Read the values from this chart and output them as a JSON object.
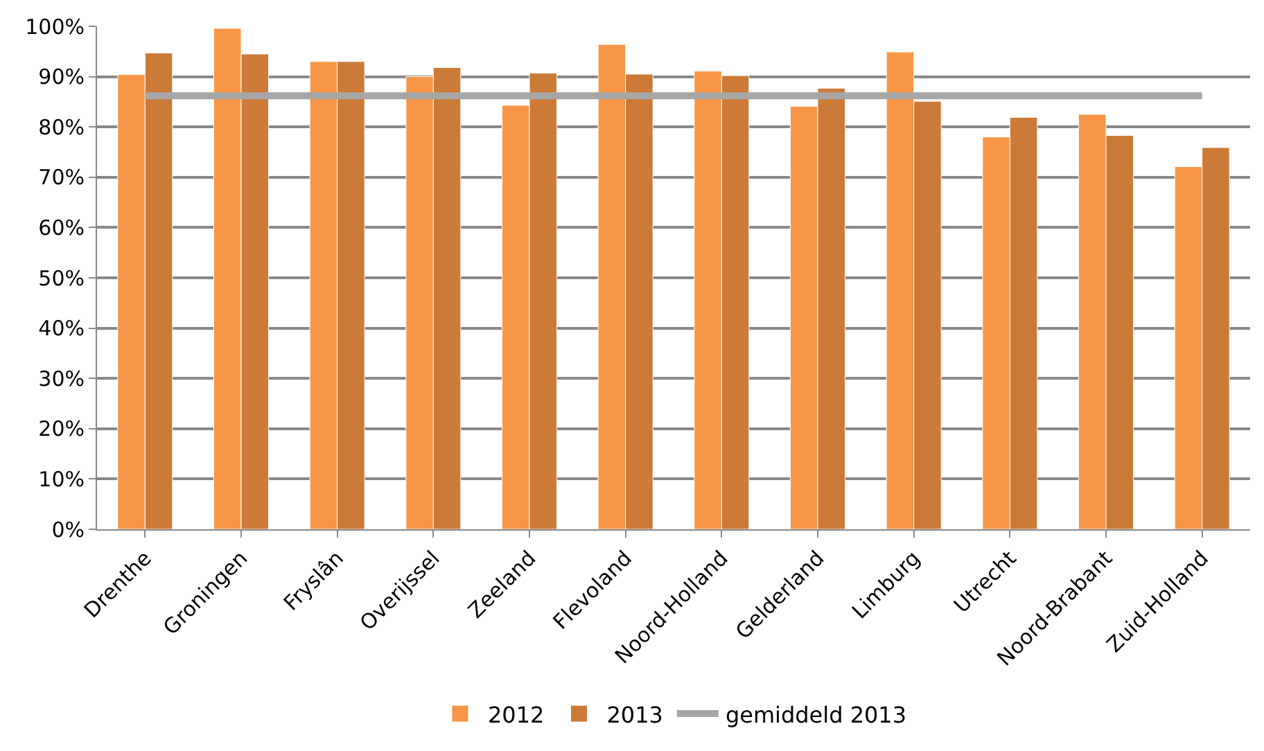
{
  "chart_data": {
    "type": "bar",
    "categories": [
      "Drenthe",
      "Groningen",
      "Fryslân",
      "Overijssel",
      "Zeeland",
      "Flevoland",
      "Noord-Holland",
      "Gelderland",
      "Limburg",
      "Utrecht",
      "Noord-Brabant",
      "Zuid-Holland"
    ],
    "series": [
      {
        "name": "2012",
        "color": "#f79646",
        "values": [
          90.4,
          99.6,
          93.0,
          90.0,
          84.3,
          96.4,
          91.1,
          84.1,
          94.9,
          78.0,
          82.5,
          72.1
        ]
      },
      {
        "name": "2013",
        "color": "#cc7a38",
        "values": [
          94.7,
          94.5,
          93.0,
          91.8,
          90.7,
          90.5,
          90.2,
          87.7,
          85.1,
          81.9,
          78.3,
          75.9
        ]
      },
      {
        "name": "gemiddeld 2013",
        "type": "line",
        "color": "#a6a6a6",
        "values": [
          86.2,
          86.2,
          86.2,
          86.2,
          86.2,
          86.2,
          86.2,
          86.2,
          86.2,
          86.2,
          86.2,
          86.2
        ]
      }
    ],
    "ylim": [
      0,
      100
    ],
    "yticks": [
      {
        "value": 0,
        "label": "0%"
      },
      {
        "value": 10,
        "label": "10%"
      },
      {
        "value": 20,
        "label": "20%"
      },
      {
        "value": 30,
        "label": "30%"
      },
      {
        "value": 40,
        "label": "40%"
      },
      {
        "value": 50,
        "label": "50%"
      },
      {
        "value": 60,
        "label": "60%"
      },
      {
        "value": 70,
        "label": "70%"
      },
      {
        "value": 80,
        "label": "80%"
      },
      {
        "value": 90,
        "label": "90%"
      },
      {
        "value": 100,
        "label": "100%"
      }
    ],
    "grid": "y",
    "legend": "bottom",
    "marker": "none",
    "line_style": "solid"
  }
}
